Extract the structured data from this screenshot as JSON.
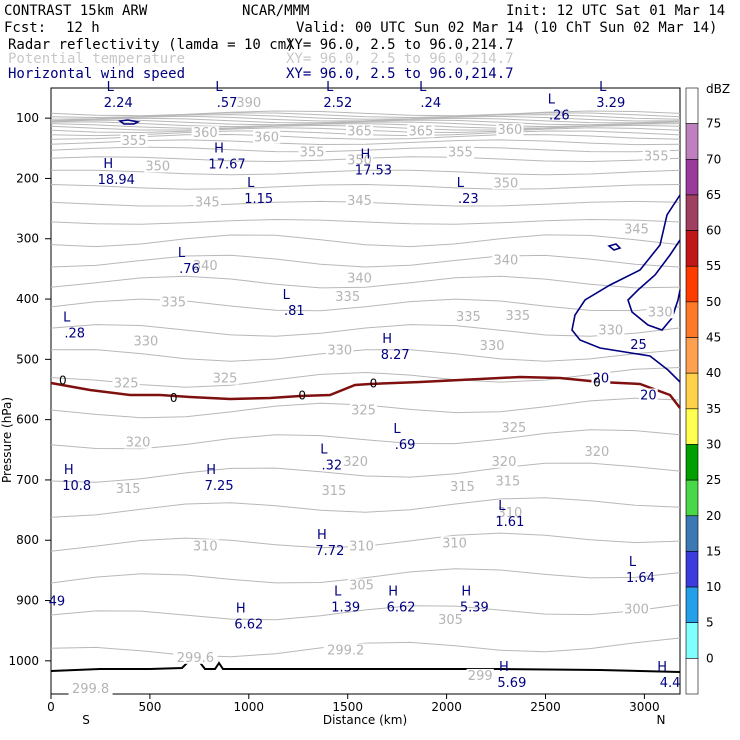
{
  "header": {
    "model": "CONTRAST 15km ARW",
    "org": "NCAR/MMM",
    "init": "Init: 12 UTC Sat 01 Mar 14",
    "fcst_label": "Fcst:",
    "fcst_value": "12 h",
    "valid": "Valid: 00 UTC Sun 02 Mar 14 (10 ChT Sun 02 Mar 14)"
  },
  "fields": [
    {
      "name": "Radar reflectivity (lamda = 10 cm)",
      "xy": "XY=  96.0,  2.5 to  96.0,214.7",
      "color": "#000080"
    },
    {
      "name": "Potential temperature",
      "xy": "XY=  96.0,  2.5 to  96.0,214.7",
      "color": "#b4b4b4"
    },
    {
      "name": "Horizontal wind speed",
      "xy": "XY=  96.0,  2.5 to  96.0,214.7",
      "color": "#000080"
    }
  ],
  "chart_data": {
    "type": "cross-section",
    "xlabel": "Distance (km)",
    "ylabel": "Pressure (hPa)",
    "xlim": [
      0,
      3180
    ],
    "ylim": [
      1055,
      50
    ],
    "x_ticks": [
      "0",
      "500",
      "1000",
      "1500",
      "2000",
      "2500",
      "3000"
    ],
    "y_ticks": [
      "100",
      "200",
      "300",
      "400",
      "500",
      "600",
      "700",
      "800",
      "900",
      "1000"
    ],
    "x_end_labels": {
      "left": "S",
      "right": "N"
    },
    "colorbar": {
      "unit": "dBZ",
      "levels": [
        "75",
        "70",
        "65",
        "60",
        "55",
        "50",
        "45",
        "40",
        "35",
        "30",
        "25",
        "20",
        "15",
        "10",
        "5",
        "0"
      ],
      "colors": [
        "#ffffff",
        "#c080c0",
        "#9a3a9a",
        "#a04060",
        "#c01818",
        "#ff3c00",
        "#ff7a28",
        "#ffa050",
        "#ffd24a",
        "#ffff50",
        "#00a000",
        "#48d848",
        "#3c78b4",
        "#3c3cdc",
        "#24a0e8",
        "#80ffff",
        "#ffffff"
      ]
    },
    "theta_labels": [
      {
        "t": "390",
        "x": 1000,
        "y": 75
      },
      {
        "t": "360",
        "x": 780,
        "y": 125
      },
      {
        "t": "360",
        "x": 1090,
        "y": 132
      },
      {
        "t": "365",
        "x": 1560,
        "y": 122
      },
      {
        "t": "365",
        "x": 1870,
        "y": 122
      },
      {
        "t": "360",
        "x": 2320,
        "y": 120
      },
      {
        "t": "355",
        "x": 420,
        "y": 138
      },
      {
        "t": "355",
        "x": 1320,
        "y": 157
      },
      {
        "t": "355",
        "x": 2070,
        "y": 157
      },
      {
        "t": "355",
        "x": 3060,
        "y": 164
      },
      {
        "t": "350",
        "x": 540,
        "y": 180
      },
      {
        "t": "350",
        "x": 1560,
        "y": 170
      },
      {
        "t": "350",
        "x": 2300,
        "y": 208
      },
      {
        "t": "345",
        "x": 790,
        "y": 240
      },
      {
        "t": "345",
        "x": 1560,
        "y": 237
      },
      {
        "t": "345",
        "x": 2960,
        "y": 285
      },
      {
        "t": "340",
        "x": 780,
        "y": 345
      },
      {
        "t": "340",
        "x": 1560,
        "y": 366
      },
      {
        "t": "340",
        "x": 2300,
        "y": 336
      },
      {
        "t": "335",
        "x": 620,
        "y": 406
      },
      {
        "t": "335",
        "x": 1500,
        "y": 397
      },
      {
        "t": "335",
        "x": 2110,
        "y": 430
      },
      {
        "t": "335",
        "x": 2360,
        "y": 428
      },
      {
        "t": "330",
        "x": 480,
        "y": 470
      },
      {
        "t": "330",
        "x": 1460,
        "y": 485
      },
      {
        "t": "330",
        "x": 2230,
        "y": 478
      },
      {
        "t": "330",
        "x": 2830,
        "y": 452
      },
      {
        "t": "330",
        "x": 3080,
        "y": 422
      },
      {
        "t": "325",
        "x": 380,
        "y": 540
      },
      {
        "t": "325",
        "x": 880,
        "y": 532
      },
      {
        "t": "325",
        "x": 1580,
        "y": 585
      },
      {
        "t": "325",
        "x": 2340,
        "y": 614
      },
      {
        "t": "320",
        "x": 440,
        "y": 638
      },
      {
        "t": "320",
        "x": 1540,
        "y": 670
      },
      {
        "t": "320",
        "x": 2290,
        "y": 670
      },
      {
        "t": "320",
        "x": 2760,
        "y": 654
      },
      {
        "t": "315",
        "x": 390,
        "y": 715
      },
      {
        "t": "315",
        "x": 1430,
        "y": 718
      },
      {
        "t": "315",
        "x": 2080,
        "y": 712
      },
      {
        "t": "315",
        "x": 2310,
        "y": 703
      },
      {
        "t": "310",
        "x": 780,
        "y": 810
      },
      {
        "t": "310",
        "x": 1570,
        "y": 810
      },
      {
        "t": "310",
        "x": 2040,
        "y": 805
      },
      {
        "t": "310",
        "x": 2320,
        "y": 755
      },
      {
        "t": "305",
        "x": 1570,
        "y": 875
      },
      {
        "t": "305",
        "x": 2020,
        "y": 932
      },
      {
        "t": "300",
        "x": 2960,
        "y": 915
      },
      {
        "t": "299.6",
        "x": 730,
        "y": 995
      },
      {
        "t": "299.2",
        "x": 1490,
        "y": 983
      },
      {
        "t": "299",
        "x": 2170,
        "y": 1025
      },
      {
        "t": "299.8",
        "x": 200,
        "y": 1047
      }
    ],
    "wind_labels": [
      {
        "t": "20",
        "x": 2780,
        "y": 532
      },
      {
        "t": "25",
        "x": 2970,
        "y": 476
      },
      {
        "t": "20",
        "x": 3020,
        "y": 560
      }
    ],
    "zero_dbz_labels": [
      {
        "t": "0",
        "x": 60,
        "y": 537
      },
      {
        "t": "0",
        "x": 620,
        "y": 566
      },
      {
        "t": "0",
        "x": 1270,
        "y": 562
      },
      {
        "t": "0",
        "x": 1630,
        "y": 542
      },
      {
        "t": "0",
        "x": 2760,
        "y": 540
      }
    ],
    "extrema": [
      {
        "kind": "L",
        "v": "2.24",
        "x": 340,
        "y": 65
      },
      {
        "kind": "L",
        "v": ".57",
        "x": 890,
        "y": 65
      },
      {
        "kind": "L",
        "v": "2.52",
        "x": 1450,
        "y": 65
      },
      {
        "kind": "L",
        "v": ".24",
        "x": 1920,
        "y": 65
      },
      {
        "kind": "L",
        "v": ".26",
        "x": 2570,
        "y": 86
      },
      {
        "kind": "L",
        "v": "3.29",
        "x": 2830,
        "y": 65
      },
      {
        "kind": "H",
        "v": "18.94",
        "x": 330,
        "y": 193
      },
      {
        "kind": "H",
        "v": "17.67",
        "x": 890,
        "y": 167
      },
      {
        "kind": "H",
        "v": "17.53",
        "x": 1630,
        "y": 177
      },
      {
        "kind": "L",
        "v": "1.15",
        "x": 1050,
        "y": 224
      },
      {
        "kind": "L",
        "v": ".23",
        "x": 2110,
        "y": 224
      },
      {
        "kind": "L",
        "v": ".76",
        "x": 700,
        "y": 340
      },
      {
        "kind": "L",
        "v": ".81",
        "x": 1230,
        "y": 410
      },
      {
        "kind": "L",
        "v": ".28",
        "x": 120,
        "y": 447
      },
      {
        "kind": "H",
        "v": "8.27",
        "x": 1740,
        "y": 483
      },
      {
        "kind": "L",
        "v": ".69",
        "x": 1790,
        "y": 632
      },
      {
        "kind": "L",
        "v": ".32",
        "x": 1420,
        "y": 666
      },
      {
        "kind": "H",
        "v": "10.8",
        "x": 130,
        "y": 700
      },
      {
        "kind": "H",
        "v": "7.25",
        "x": 850,
        "y": 700
      },
      {
        "kind": "L",
        "v": "1.61",
        "x": 2320,
        "y": 760
      },
      {
        "kind": "H",
        "v": "7.72",
        "x": 1410,
        "y": 808
      },
      {
        "kind": "L",
        "v": "1.64",
        "x": 2980,
        "y": 853
      },
      {
        "kind": "L",
        "v": "1.39",
        "x": 1490,
        "y": 902
      },
      {
        "kind": "H",
        "v": "6.62",
        "x": 1770,
        "y": 902
      },
      {
        "kind": "H",
        "v": "5.39",
        "x": 2140,
        "y": 902
      },
      {
        "kind": "H",
        "v": "6.62",
        "x": 1000,
        "y": 930
      },
      {
        "kind": "H",
        "v": "5.69",
        "x": 2330,
        "y": 1027
      },
      {
        "kind": "H",
        "v": "4.4",
        "x": 3130,
        "y": 1027
      }
    ],
    "edge_labels": [
      {
        "t": "49",
        "x": 30,
        "y": 902
      }
    ]
  }
}
